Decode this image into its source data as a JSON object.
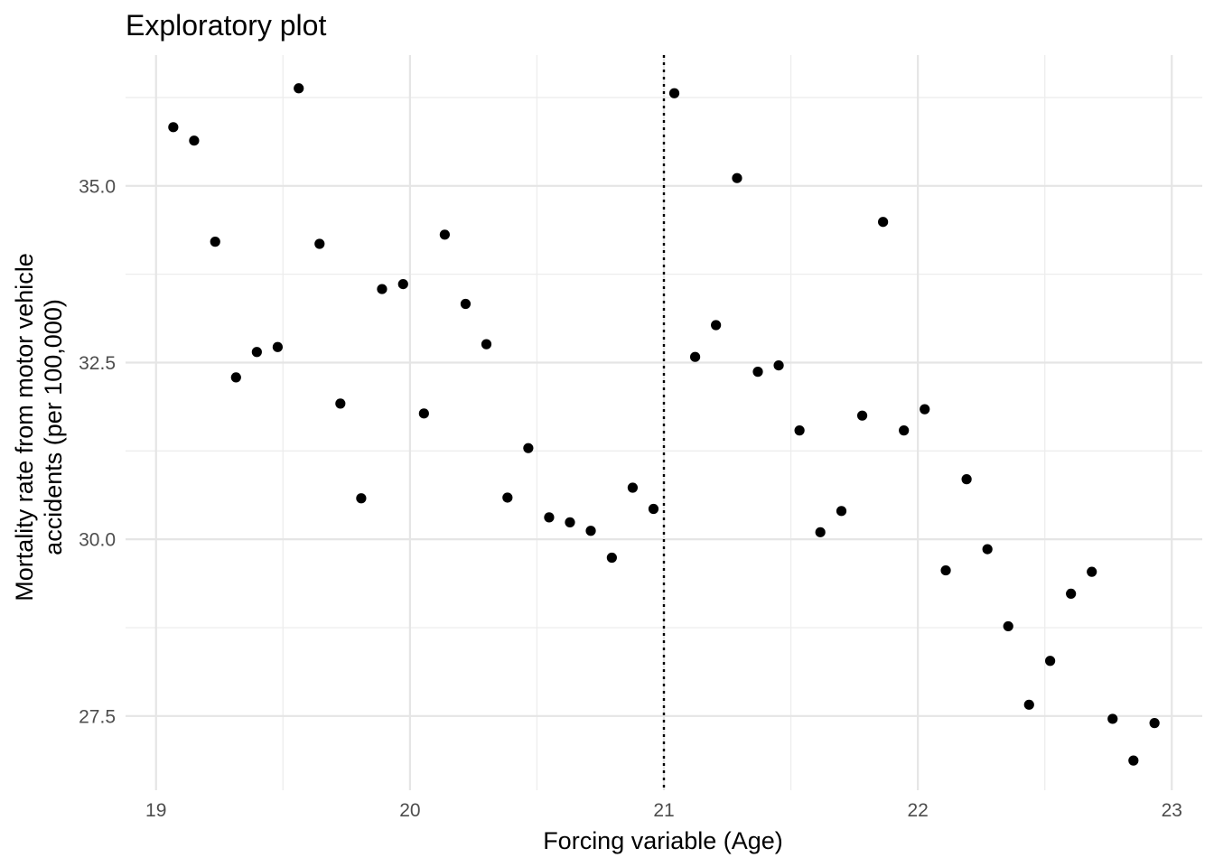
{
  "chart_data": {
    "type": "scatter",
    "title": "Exploratory plot",
    "xlabel": "Forcing variable (Age)",
    "ylabel_lines": [
      "Mortality rate from motor vehicle",
      "accidents (per 100,000)"
    ],
    "xlim": [
      18.88,
      23.12
    ],
    "ylim": [
      26.45,
      36.85
    ],
    "x_ticks": [
      19,
      20,
      21,
      22,
      23
    ],
    "x_tick_labels": [
      "19",
      "20",
      "21",
      "22",
      "23"
    ],
    "y_ticks": [
      27.5,
      30.0,
      32.5,
      35.0
    ],
    "y_tick_labels": [
      "27.5",
      "30.0",
      "32.5",
      "35.0"
    ],
    "x_minor": [
      19.5,
      20.5,
      21.5,
      22.5
    ],
    "y_minor": [
      28.75,
      31.25,
      33.75,
      36.25
    ],
    "grid": true,
    "cutoff_x": 21,
    "cutoff_style": "dotted",
    "points": {
      "x": [
        19.068,
        19.15,
        19.233,
        19.315,
        19.397,
        19.479,
        19.562,
        19.644,
        19.726,
        19.808,
        19.89,
        19.973,
        20.055,
        20.137,
        20.219,
        20.301,
        20.384,
        20.466,
        20.548,
        20.63,
        20.712,
        20.795,
        20.877,
        20.959,
        21.041,
        21.123,
        21.205,
        21.288,
        21.37,
        21.452,
        21.534,
        21.616,
        21.699,
        21.781,
        21.863,
        21.945,
        22.027,
        22.11,
        22.192,
        22.274,
        22.356,
        22.438,
        22.521,
        22.603,
        22.685,
        22.767,
        22.849,
        22.932
      ],
      "y": [
        35.83,
        35.64,
        34.21,
        32.29,
        32.65,
        32.72,
        36.38,
        34.18,
        31.92,
        30.58,
        33.54,
        33.61,
        31.78,
        34.31,
        33.33,
        32.76,
        30.59,
        31.29,
        30.31,
        30.24,
        30.12,
        29.74,
        30.73,
        30.43,
        36.31,
        32.58,
        33.03,
        35.11,
        32.37,
        32.46,
        31.54,
        30.1,
        30.4,
        31.75,
        34.49,
        31.54,
        31.84,
        29.56,
        30.85,
        29.86,
        28.77,
        27.66,
        28.28,
        29.23,
        29.54,
        27.46,
        26.87,
        27.4
      ]
    }
  }
}
